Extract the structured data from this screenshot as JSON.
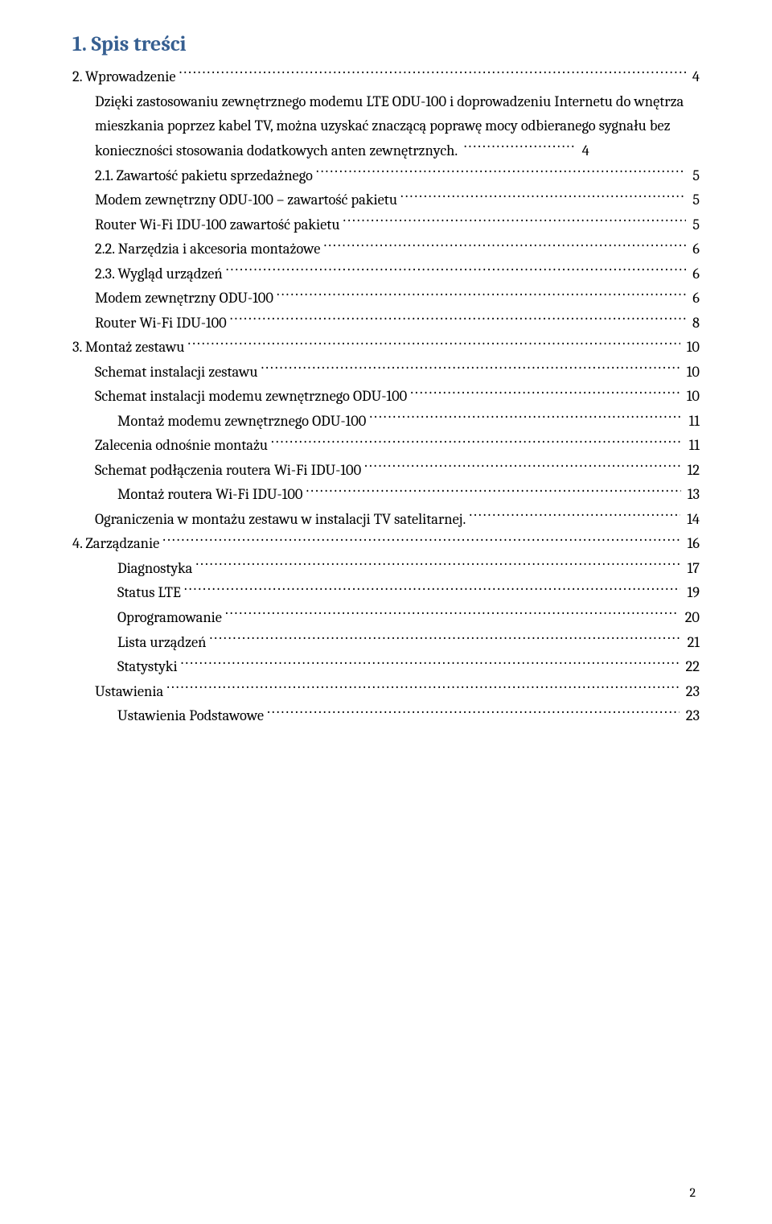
{
  "title": "1. Spis treści",
  "page_number": "2",
  "colors": {
    "heading": "#365f91",
    "text": "#000000",
    "background": "#ffffff"
  },
  "toc": [
    {
      "label": "2.   Wprowadzenie",
      "page": "4",
      "indent": 0
    },
    {
      "label": "Dzięki zastosowaniu zewnętrznego modemu LTE ODU-100 i doprowadzeniu Internetu do wnętrza mieszkania poprzez kabel TV, można uzyskać znaczącą poprawę mocy odbieranego sygnału bez konieczności stosowania dodatkowych anten zewnętrznych.",
      "page": "4",
      "indent": 1,
      "wrap": true
    },
    {
      "label": "2.1.    Zawartość pakietu sprzedażnego",
      "page": "5",
      "indent": 1
    },
    {
      "label": "Modem zewnętrzny ODU-100 – zawartość pakietu",
      "page": "5",
      "indent": 1
    },
    {
      "label": "Router Wi-Fi IDU-100 zawartość pakietu",
      "page": "5",
      "indent": 1
    },
    {
      "label": "2.2.    Narzędzia i akcesoria montażowe",
      "page": "6",
      "indent": 1
    },
    {
      "label": "2.3.    Wygląd urządzeń",
      "page": "6",
      "indent": 1
    },
    {
      "label": "Modem zewnętrzny ODU-100",
      "page": "6",
      "indent": 1
    },
    {
      "label": "Router Wi-Fi  IDU-100",
      "page": "8",
      "indent": 1
    },
    {
      "label": "3.   Montaż zestawu",
      "page": "10",
      "indent": 0
    },
    {
      "label": "Schemat instalacji zestawu",
      "page": "10",
      "indent": 1
    },
    {
      "label": "Schemat instalacji modemu zewnętrznego ODU-100",
      "page": "10",
      "indent": 1
    },
    {
      "label": "Montaż modemu zewnętrznego ODU-100",
      "page": "11",
      "indent": 2
    },
    {
      "label": "Zalecenia odnośnie montażu",
      "page": "11",
      "indent": 1
    },
    {
      "label": "Schemat podłączenia routera Wi-Fi IDU-100",
      "page": "12",
      "indent": 1
    },
    {
      "label": "Montaż routera Wi-Fi IDU-100",
      "page": "13",
      "indent": 2
    },
    {
      "label": "Ograniczenia w montażu zestawu w instalacji TV satelitarnej.",
      "page": "14",
      "indent": 1
    },
    {
      "label": "4.   Zarządzanie",
      "page": "16",
      "indent": 0
    },
    {
      "label": "Diagnostyka",
      "page": "17",
      "indent": 2
    },
    {
      "label": "Status LTE",
      "page": "19",
      "indent": 2
    },
    {
      "label": "Oprogramowanie",
      "page": "20",
      "indent": 2
    },
    {
      "label": "Lista urządzeń",
      "page": "21",
      "indent": 2
    },
    {
      "label": "Statystyki",
      "page": "22",
      "indent": 2
    },
    {
      "label": "Ustawienia",
      "page": "23",
      "indent": 1
    },
    {
      "label": "Ustawienia Podstawowe",
      "page": "23",
      "indent": 2
    }
  ]
}
